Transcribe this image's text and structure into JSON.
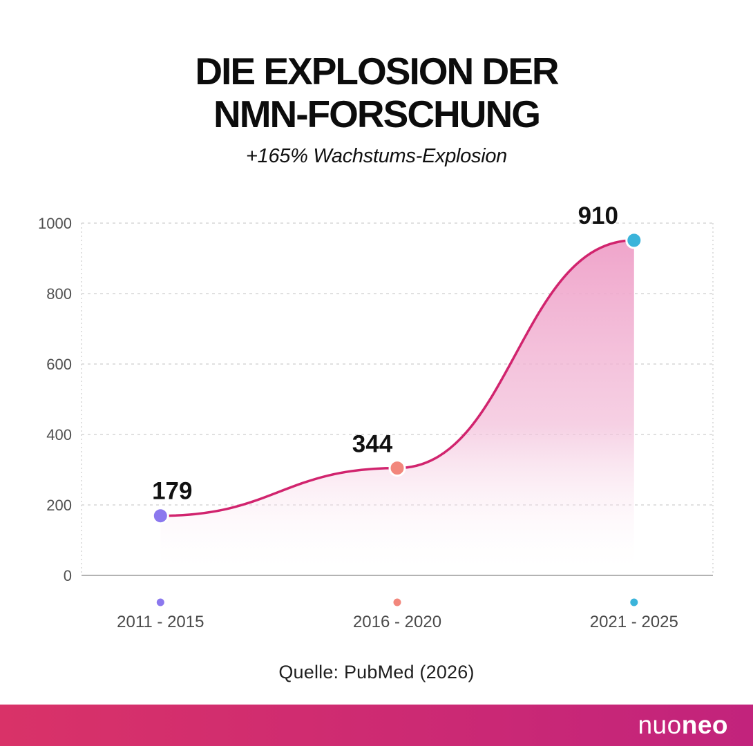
{
  "header": {
    "title_lines": [
      "DIE EXPLOSION DER",
      "NMN-FORSCHUNG"
    ],
    "subtitle": "+165% Wachstums-Explosion"
  },
  "chart_data": {
    "type": "area",
    "title": "DIE EXPLOSION DER NMN-FORSCHUNG",
    "subtitle": "+165% Wachstums-Explosion",
    "categories": [
      "2011 - 2015",
      "2016 - 2020",
      "2021 - 2025"
    ],
    "values": [
      179,
      344,
      910
    ],
    "xlabel": "",
    "ylabel": "",
    "ylim": [
      0,
      1000
    ],
    "yticks": [
      0,
      200,
      400,
      600,
      800,
      1000
    ],
    "grid": true,
    "legend_position": "bottom",
    "line_color": "#d1246e",
    "point_colors": [
      "#8b78ee",
      "#f2877c",
      "#3bb4da"
    ],
    "area_gradient_top": "#efa0c8",
    "area_gradient_mid": "#f2bcd8",
    "gridline_color": "#d6d6d6",
    "axis_line_color": "#b3b3b3"
  },
  "source": {
    "text": "Quelle: PubMed (2026)"
  },
  "footer": {
    "brand_prefix": "nuo",
    "brand_suffix": "neo",
    "gradient_left": "#d93268",
    "gradient_right": "#c2237c"
  }
}
